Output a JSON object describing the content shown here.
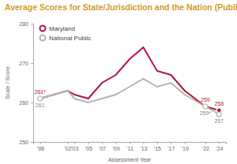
{
  "chart_data": {
    "type": "line",
    "title": "Average Scores for State/Jurisdiction and the Nation (Public)",
    "x_label": "Assessment Year",
    "y_label": "Scale / Score",
    "x": [
      1998,
      2002,
      2003,
      2005,
      2007,
      2009,
      2011,
      2013,
      2015,
      2017,
      2019,
      2022,
      2024
    ],
    "xlim": [
      1997,
      2025
    ],
    "xticks": [
      {
        "value": 1998,
        "label": "'98"
      },
      {
        "value": 2002,
        "label": "'02"
      },
      {
        "value": 2003,
        "label": "'03"
      },
      {
        "value": 2005,
        "label": "'05"
      },
      {
        "value": 2007,
        "label": "'07"
      },
      {
        "value": 2009,
        "label": "'09"
      },
      {
        "value": 2011,
        "label": "'11"
      },
      {
        "value": 2013,
        "label": "'13"
      },
      {
        "value": 2015,
        "label": "'15"
      },
      {
        "value": 2017,
        "label": "'17"
      },
      {
        "value": 2019,
        "label": "'19"
      },
      {
        "value": 2022,
        "label": "'22"
      },
      {
        "value": 2024,
        "label": "'24"
      }
    ],
    "ylim": [
      250,
      280
    ],
    "yticks": [
      250,
      260,
      270,
      280
    ],
    "legend": "top-left",
    "data_labels": true,
    "series": [
      {
        "name": "Maryland",
        "color": "#b0173c",
        "marker": "circle",
        "values": [
          261,
          263,
          262,
          261,
          265,
          267,
          271,
          274,
          268,
          267,
          263,
          259,
          258
        ],
        "value_labels": [
          "261*",
          null,
          null,
          null,
          null,
          null,
          null,
          null,
          null,
          null,
          null,
          "259",
          "258"
        ]
      },
      {
        "name": "National Public",
        "color": "#b4b4b4",
        "marker": "circle",
        "values": [
          261,
          263,
          261,
          260,
          261,
          262,
          264,
          266,
          264,
          265,
          262,
          259,
          257
        ],
        "value_labels": [
          "261",
          null,
          null,
          null,
          null,
          null,
          null,
          null,
          null,
          null,
          null,
          "259*",
          "257"
        ]
      }
    ]
  }
}
